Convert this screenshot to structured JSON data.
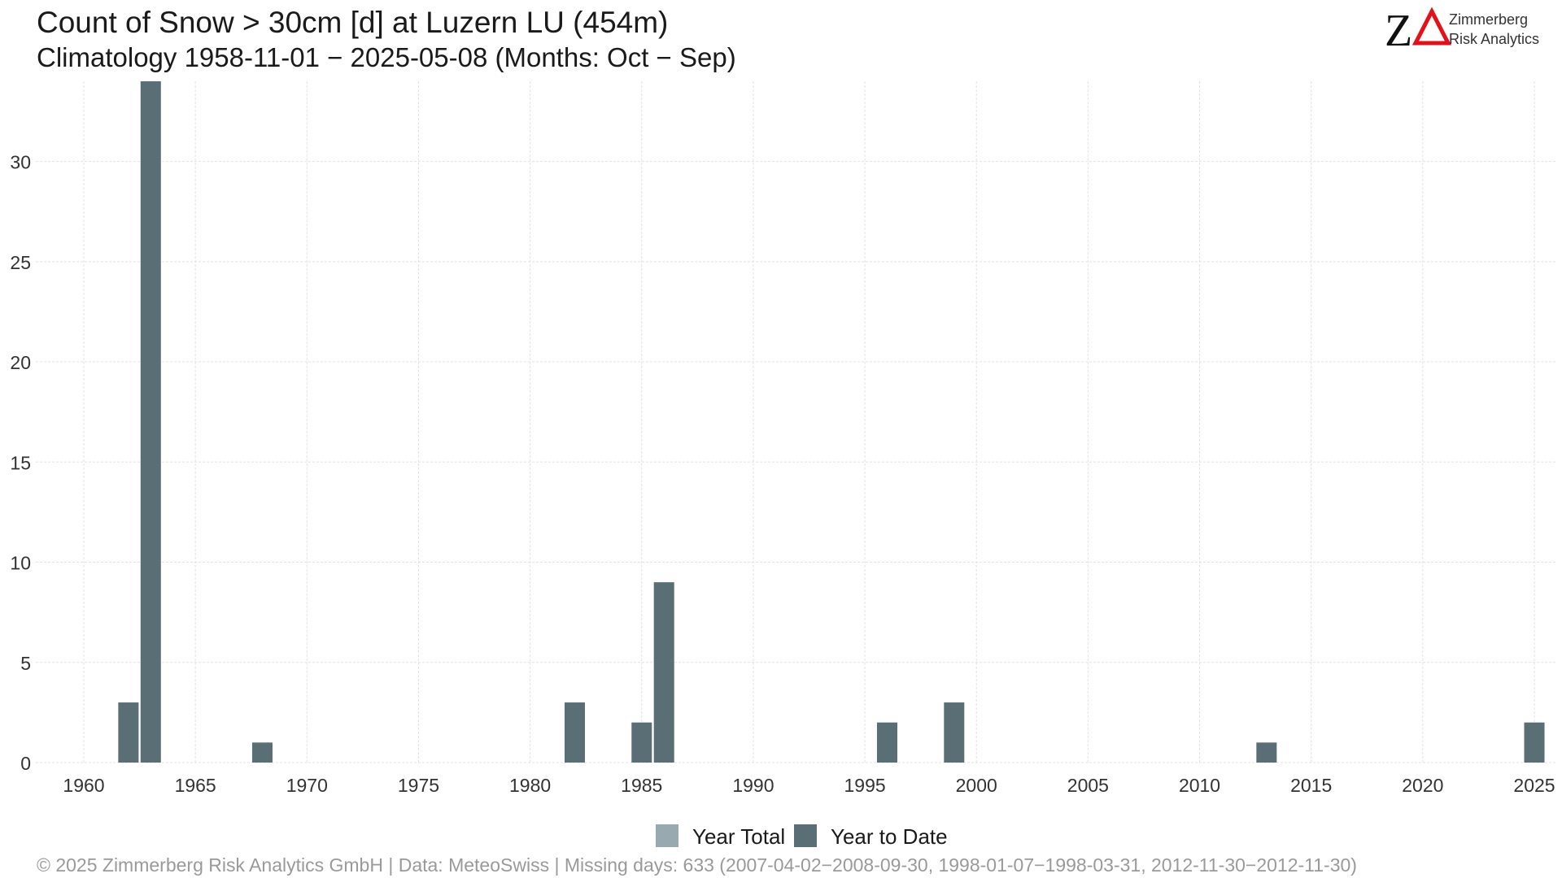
{
  "chart_data": {
    "type": "bar",
    "title": "Count of Snow > 30cm [d] at Luzern  LU (454m)",
    "subtitle": "Climatology 1958-11-01 − 2025-05-08 (Months: Oct − Sep)",
    "xlabel": "",
    "ylabel": "",
    "xlim": [
      1958,
      2026
    ],
    "ylim": [
      0,
      34
    ],
    "x_ticks": [
      1960,
      1965,
      1970,
      1975,
      1980,
      1985,
      1990,
      1995,
      2000,
      2005,
      2010,
      2015,
      2020,
      2025
    ],
    "y_ticks": [
      0,
      5,
      10,
      15,
      20,
      25,
      30
    ],
    "grid": true,
    "legend_position": "bottom",
    "series": [
      {
        "name": "Year Total",
        "color": "#99a9b0",
        "points": []
      },
      {
        "name": "Year to Date",
        "color": "#5a6e75",
        "points": [
          {
            "x": 1962,
            "y": 3
          },
          {
            "x": 1963,
            "y": 34
          },
          {
            "x": 1968,
            "y": 1
          },
          {
            "x": 1982,
            "y": 3
          },
          {
            "x": 1985,
            "y": 2
          },
          {
            "x": 1986,
            "y": 9
          },
          {
            "x": 1996,
            "y": 2
          },
          {
            "x": 1999,
            "y": 3
          },
          {
            "x": 2013,
            "y": 1
          },
          {
            "x": 2025,
            "y": 2
          }
        ]
      }
    ]
  },
  "caption": "©  2025 Zimmerberg Risk Analytics GmbH | Data: MeteoSwiss | Missing days: 633 (2007-04-02−2008-09-30, 1998-01-07−1998-03-31, 2012-11-30−2012-11-30)",
  "logo": {
    "mark": "Z",
    "line1": "Zimmerberg",
    "line2": "Risk Analytics",
    "triangle_color": "#e3111a"
  }
}
